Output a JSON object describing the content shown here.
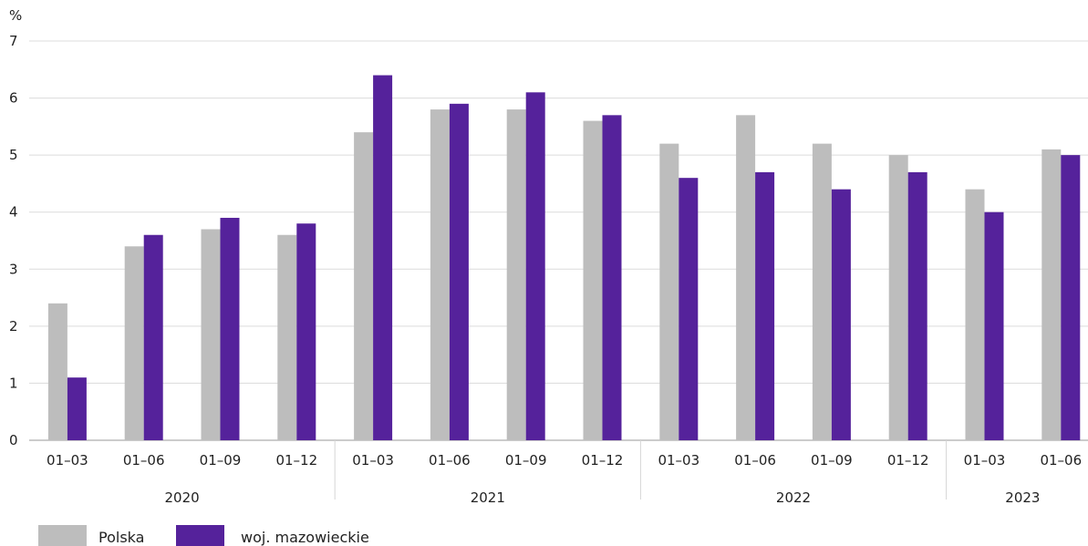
{
  "chart_data": {
    "type": "bar",
    "ylabel": "%",
    "ylim": [
      0,
      7
    ],
    "yticks": [
      "0",
      "1",
      "2",
      "3",
      "4",
      "5",
      "6",
      "7"
    ],
    "grid": true,
    "legend_position": "bottom-left",
    "groups": [
      {
        "label": "2020",
        "categories": [
          "01–03",
          "01–06",
          "01–09",
          "01–12"
        ]
      },
      {
        "label": "2021",
        "categories": [
          "01–03",
          "01–06",
          "01–09",
          "01–12"
        ]
      },
      {
        "label": "2022",
        "categories": [
          "01–03",
          "01–06",
          "01–09",
          "01–12"
        ]
      },
      {
        "label": "2023",
        "categories": [
          "01–03",
          "01–06"
        ]
      }
    ],
    "series": [
      {
        "name": "Polska",
        "color": "#bdbdbd",
        "values": [
          2.4,
          3.4,
          3.7,
          3.6,
          5.4,
          5.8,
          5.8,
          5.6,
          5.2,
          5.7,
          5.2,
          5.0,
          4.4,
          5.1
        ]
      },
      {
        "name": "woj. mazowieckie",
        "color": "#55229b",
        "values": [
          1.1,
          3.6,
          3.9,
          3.8,
          6.4,
          5.9,
          6.1,
          5.7,
          4.6,
          4.7,
          4.4,
          4.7,
          4.0,
          5.0
        ]
      }
    ]
  }
}
